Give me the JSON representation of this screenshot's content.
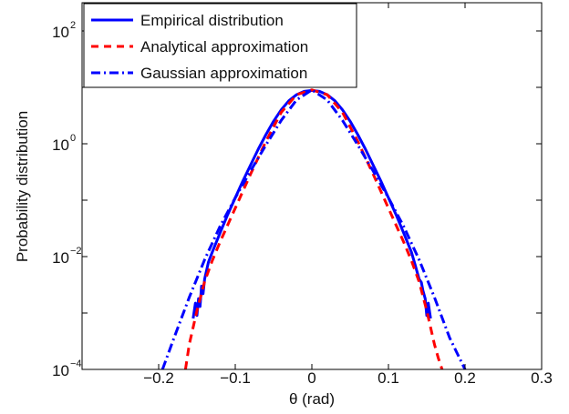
{
  "chart_data": {
    "type": "line",
    "xlabel": "θ (rad)",
    "ylabel": "Probability distribution",
    "xlim": [
      -0.3,
      0.3
    ],
    "ylim_log10": [
      -4,
      2.5
    ],
    "yscale": "log",
    "grid": false,
    "legend_position": "top-left",
    "x_ticks": [
      {
        "value": -0.2,
        "label": "−0.2"
      },
      {
        "value": -0.1,
        "label": "−0.1"
      },
      {
        "value": 0,
        "label": "0"
      },
      {
        "value": 0.1,
        "label": "0.1"
      },
      {
        "value": 0.2,
        "label": "0.2"
      },
      {
        "value": 0.3,
        "label": "0.3"
      }
    ],
    "y_ticks": [
      {
        "exponent": -4,
        "base": "10",
        "exp": "−4"
      },
      {
        "exponent": -2,
        "base": "10",
        "exp": "−2"
      },
      {
        "exponent": 0,
        "base": "10",
        "exp": "0"
      },
      {
        "exponent": 2,
        "base": "10",
        "exp": "2"
      }
    ],
    "series": [
      {
        "name": "Empirical distribution",
        "style": "solid",
        "color": "#0000ff",
        "x": [
          -0.155,
          -0.152,
          -0.15,
          -0.148,
          -0.146,
          -0.144,
          -0.142,
          -0.14,
          -0.135,
          -0.13,
          -0.12,
          -0.11,
          -0.1,
          -0.09,
          -0.08,
          -0.07,
          -0.06,
          -0.05,
          -0.04,
          -0.03,
          -0.02,
          -0.01,
          0,
          0.01,
          0.02,
          0.03,
          0.04,
          0.05,
          0.06,
          0.07,
          0.08,
          0.09,
          0.1,
          0.11,
          0.12,
          0.13,
          0.135,
          0.14,
          0.143,
          0.145,
          0.148,
          0.15,
          0.152,
          0.155
        ],
        "y": [
          0.0008,
          0.0015,
          0.0009,
          0.0018,
          0.0013,
          0.003,
          0.0022,
          0.004,
          0.008,
          0.012,
          0.026,
          0.055,
          0.11,
          0.22,
          0.42,
          0.8,
          1.45,
          2.5,
          4.0,
          5.8,
          7.4,
          8.5,
          8.8,
          8.5,
          7.4,
          5.8,
          4.0,
          2.5,
          1.45,
          0.8,
          0.42,
          0.22,
          0.11,
          0.055,
          0.026,
          0.012,
          0.007,
          0.004,
          0.0035,
          0.0025,
          0.0018,
          0.0009,
          0.0015,
          0.0008
        ]
      },
      {
        "name": "Analytical approximation",
        "style": "dashed",
        "color": "#ff0000",
        "x": [
          -0.165,
          -0.16,
          -0.15,
          -0.14,
          -0.13,
          -0.12,
          -0.1,
          -0.08,
          -0.06,
          -0.04,
          -0.02,
          0,
          0.02,
          0.04,
          0.06,
          0.08,
          0.1,
          0.12,
          0.13,
          0.14,
          0.15,
          0.16,
          0.165,
          0.17
        ],
        "y": [
          0.0001,
          0.00028,
          0.0011,
          0.0036,
          0.0085,
          0.018,
          0.072,
          0.29,
          1.1,
          3.6,
          7.4,
          9.0,
          7.4,
          3.6,
          1.1,
          0.29,
          0.072,
          0.018,
          0.0085,
          0.0036,
          0.0011,
          0.00028,
          0.00016,
          0.0001
        ]
      },
      {
        "name": "Gaussian approximation",
        "style": "dashdot",
        "color": "#0000ff",
        "x": [
          -0.195,
          -0.18,
          -0.16,
          -0.14,
          -0.12,
          -0.1,
          -0.08,
          -0.06,
          -0.04,
          -0.02,
          0,
          0.02,
          0.04,
          0.06,
          0.08,
          0.1,
          0.12,
          0.14,
          0.16,
          0.18,
          0.2
        ],
        "y": [
          0.0001,
          0.00036,
          0.0019,
          0.0088,
          0.034,
          0.11,
          0.33,
          0.95,
          2.6,
          6.0,
          9.0,
          6.0,
          2.6,
          0.95,
          0.33,
          0.11,
          0.034,
          0.0088,
          0.0019,
          0.00036,
          0.0001
        ]
      }
    ]
  }
}
